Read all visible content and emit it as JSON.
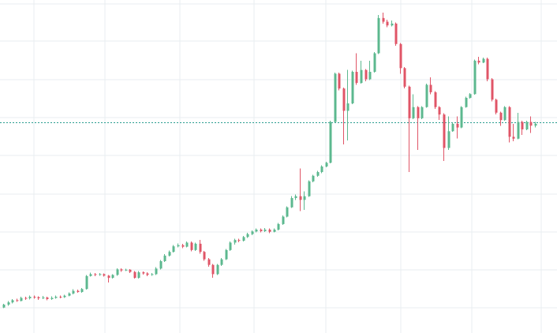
{
  "chart_data": {
    "type": "candlestick",
    "title": "",
    "xlabel": "",
    "ylabel": "",
    "grid": true,
    "legend": "none",
    "colors": {
      "up": "#5cb88f",
      "down": "#e05567",
      "grid": "#e9edf1",
      "reference": "#2a9d8f"
    },
    "ylim": [
      0,
      88
    ],
    "reference_line": 56,
    "candles": [
      [
        6,
        6.8,
        5.8,
        7
      ],
      [
        6.8,
        7.4,
        6.5,
        7.8
      ],
      [
        7.4,
        8.0,
        7.1,
        8.3
      ],
      [
        8.0,
        7.8,
        7.5,
        8.4
      ],
      [
        7.8,
        8.6,
        7.6,
        8.9
      ],
      [
        8.6,
        8.5,
        8.1,
        8.9
      ],
      [
        8.5,
        8.9,
        8.2,
        9.2
      ],
      [
        8.9,
        8.8,
        8.4,
        9.2
      ],
      [
        8.8,
        8.5,
        8.1,
        9.0
      ],
      [
        8.5,
        8.7,
        8.3,
        9.1
      ],
      [
        8.7,
        8.3,
        8.0,
        8.9
      ],
      [
        8.3,
        8.6,
        8.1,
        9.0
      ],
      [
        8.6,
        8.9,
        8.4,
        9.2
      ],
      [
        8.9,
        8.8,
        8.5,
        9.2
      ],
      [
        8.8,
        9.2,
        8.6,
        9.5
      ],
      [
        9.2,
        9.8,
        9.0,
        10.1
      ],
      [
        9.8,
        10.5,
        9.6,
        10.9
      ],
      [
        10.5,
        10.2,
        10.0,
        10.8
      ],
      [
        10.2,
        11.0,
        10.0,
        11.3
      ],
      [
        11.0,
        14.5,
        10.8,
        14.8
      ],
      [
        14.5,
        15.0,
        14.3,
        15.4
      ],
      [
        15.0,
        14.8,
        14.5,
        15.3
      ],
      [
        14.8,
        15.0,
        14.6,
        15.3
      ],
      [
        15.0,
        14.6,
        14.3,
        15.2
      ],
      [
        14.6,
        14.0,
        12.8,
        14.8
      ],
      [
        14.0,
        14.8,
        13.8,
        15.0
      ],
      [
        14.8,
        16.3,
        14.6,
        16.6
      ],
      [
        16.3,
        16.0,
        15.6,
        16.6
      ],
      [
        16.0,
        16.2,
        15.8,
        16.5
      ],
      [
        16.2,
        15.6,
        15.3,
        16.4
      ],
      [
        15.6,
        14.0,
        13.8,
        15.8
      ],
      [
        14.0,
        15.5,
        13.8,
        15.8
      ],
      [
        15.5,
        15.2,
        14.9,
        15.7
      ],
      [
        15.2,
        14.8,
        14.5,
        15.5
      ],
      [
        14.8,
        15.0,
        14.6,
        15.3
      ],
      [
        15.0,
        16.5,
        14.8,
        16.9
      ],
      [
        16.5,
        18.5,
        16.3,
        18.8
      ],
      [
        18.5,
        20.0,
        18.3,
        20.4
      ],
      [
        20.0,
        21.0,
        19.8,
        21.4
      ],
      [
        21.0,
        22.5,
        20.8,
        22.9
      ],
      [
        22.5,
        22.8,
        22.2,
        23.3
      ],
      [
        22.8,
        22.4,
        22.0,
        23.2
      ],
      [
        22.4,
        23.5,
        22.2,
        23.8
      ],
      [
        23.5,
        21.5,
        21.2,
        23.8
      ],
      [
        21.5,
        23.2,
        21.3,
        23.5
      ],
      [
        23.2,
        21.0,
        20.5,
        24.2
      ],
      [
        21.0,
        19.0,
        18.6,
        21.3
      ],
      [
        19.0,
        17.5,
        17.0,
        19.3
      ],
      [
        17.5,
        15.0,
        14.0,
        17.8
      ],
      [
        15.0,
        17.5,
        14.8,
        17.8
      ],
      [
        17.5,
        19.0,
        17.2,
        19.3
      ],
      [
        19.0,
        21.5,
        18.8,
        21.8
      ],
      [
        21.5,
        23.5,
        21.3,
        23.8
      ],
      [
        23.5,
        24.2,
        23.0,
        24.5
      ],
      [
        24.2,
        24.0,
        23.6,
        24.5
      ],
      [
        24.0,
        25.0,
        23.8,
        25.3
      ],
      [
        25.0,
        25.8,
        24.8,
        26.1
      ],
      [
        25.8,
        26.5,
        25.5,
        26.8
      ],
      [
        26.5,
        27.0,
        26.2,
        27.3
      ],
      [
        27.0,
        26.6,
        26.2,
        27.3
      ],
      [
        26.6,
        27.0,
        26.4,
        27.4
      ],
      [
        27.0,
        26.4,
        26.0,
        27.3
      ],
      [
        26.4,
        27.0,
        26.2,
        27.3
      ],
      [
        27.0,
        28.5,
        26.8,
        28.8
      ],
      [
        28.5,
        30.5,
        28.3,
        30.8
      ],
      [
        30.5,
        33.0,
        30.3,
        33.3
      ],
      [
        33.0,
        35.5,
        32.8,
        36.0
      ],
      [
        35.5,
        36.0,
        35.0,
        36.5
      ],
      [
        36.0,
        35.0,
        32.0,
        43.5
      ],
      [
        35.0,
        36.0,
        32.3,
        37.3
      ],
      [
        36.0,
        40.0,
        35.8,
        40.3
      ],
      [
        40.0,
        41.5,
        39.8,
        41.8
      ],
      [
        41.5,
        42.5,
        41.2,
        42.8
      ],
      [
        42.5,
        44.0,
        42.2,
        44.3
      ],
      [
        44.0,
        45.0,
        43.8,
        45.3
      ],
      [
        45.0,
        56.0,
        44.8,
        56.3
      ],
      [
        56.0,
        69.0,
        55.8,
        69.3
      ],
      [
        69.0,
        65.0,
        64.5,
        69.3
      ],
      [
        65.0,
        59.0,
        50.0,
        65.3
      ],
      [
        59.0,
        61.0,
        51.0,
        70.0
      ],
      [
        61.0,
        69.5,
        60.8,
        69.8
      ],
      [
        69.5,
        66.5,
        66.0,
        74.5
      ],
      [
        66.5,
        70.0,
        66.3,
        72.5
      ],
      [
        70.0,
        67.5,
        67.0,
        70.3
      ],
      [
        67.5,
        69.5,
        67.3,
        72.5
      ],
      [
        69.5,
        74.5,
        69.3,
        74.8
      ],
      [
        74.5,
        84.0,
        74.3,
        84.8
      ],
      [
        84.0,
        83.0,
        82.5,
        85.5
      ],
      [
        83.0,
        82.0,
        81.5,
        83.5
      ],
      [
        82.0,
        82.5,
        81.7,
        83.3
      ],
      [
        82.5,
        77.0,
        76.5,
        82.8
      ],
      [
        77.0,
        70.5,
        69.0,
        77.3
      ],
      [
        70.5,
        65.5,
        65.0,
        70.8
      ],
      [
        65.5,
        57.0,
        42.5,
        65.8
      ],
      [
        57.0,
        60.0,
        56.8,
        63.5
      ],
      [
        60.0,
        57.0,
        48.5,
        60.3
      ],
      [
        57.0,
        60.0,
        56.8,
        60.3
      ],
      [
        60.0,
        66.0,
        59.8,
        66.3
      ],
      [
        66.0,
        64.0,
        63.5,
        68.0
      ],
      [
        64.0,
        60.0,
        59.5,
        64.3
      ],
      [
        60.0,
        58.0,
        56.5,
        60.3
      ],
      [
        58.0,
        49.0,
        45.5,
        58.3
      ],
      [
        49.0,
        53.5,
        48.5,
        57.5
      ],
      [
        53.5,
        55.5,
        53.3,
        55.8
      ],
      [
        55.5,
        54.5,
        51.5,
        57.5
      ],
      [
        54.5,
        60.0,
        54.3,
        60.3
      ],
      [
        60.0,
        62.5,
        59.8,
        62.8
      ],
      [
        62.5,
        63.5,
        62.3,
        63.8
      ],
      [
        63.5,
        72.5,
        63.3,
        72.8
      ],
      [
        72.5,
        72.0,
        71.5,
        73.5
      ],
      [
        72.0,
        73.0,
        71.8,
        73.3
      ],
      [
        73.0,
        67.5,
        67.0,
        73.3
      ],
      [
        67.5,
        62.0,
        61.5,
        67.8
      ],
      [
        62.0,
        58.5,
        58.0,
        62.3
      ],
      [
        58.5,
        56.5,
        55.0,
        58.8
      ],
      [
        56.5,
        60.0,
        56.3,
        60.3
      ],
      [
        60.0,
        52.0,
        50.5,
        60.3
      ],
      [
        52.0,
        51.5,
        50.8,
        55.5
      ],
      [
        51.5,
        56.0,
        51.3,
        58.5
      ],
      [
        56.0,
        54.0,
        52.5,
        56.3
      ],
      [
        54.0,
        56.0,
        53.8,
        56.3
      ],
      [
        56.0,
        55.0,
        53.0,
        57.5
      ],
      [
        55.0,
        55.5,
        54.5,
        56.0
      ]
    ]
  }
}
